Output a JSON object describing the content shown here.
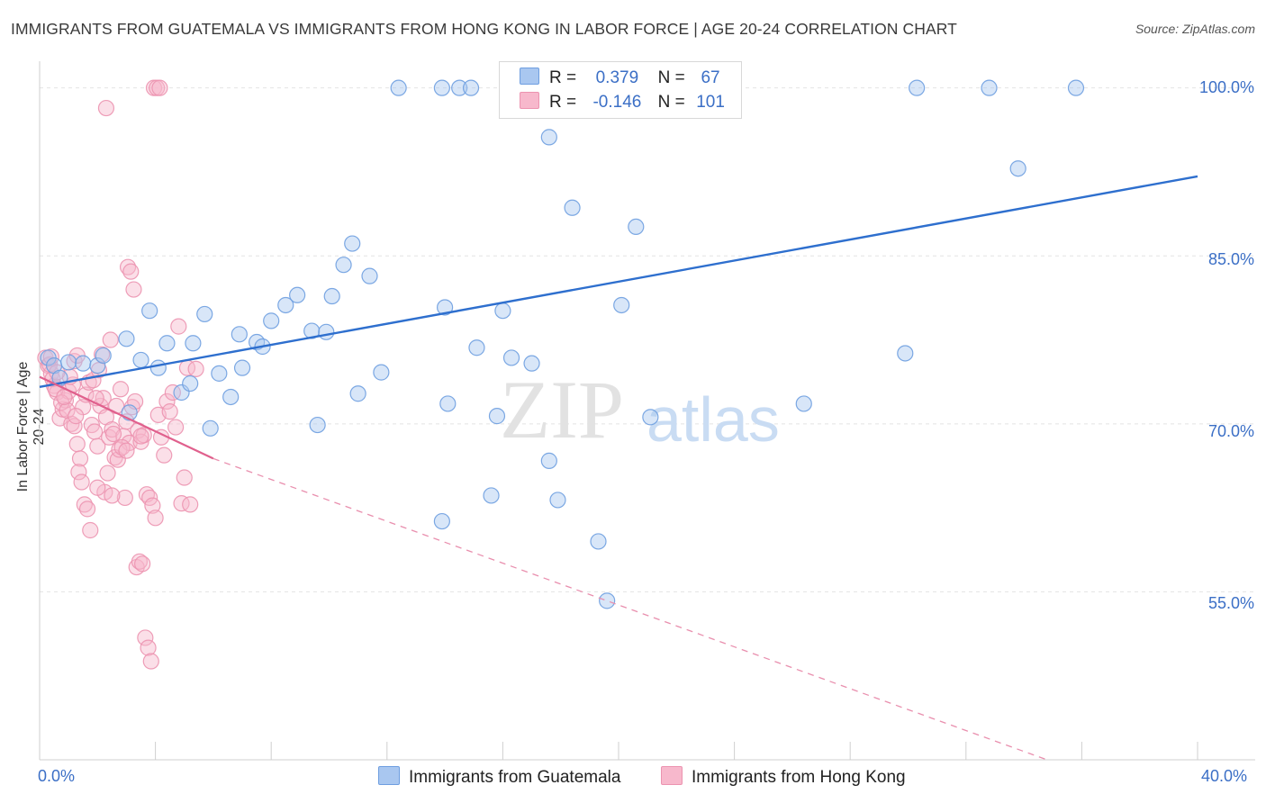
{
  "title": "IMMIGRANTS FROM GUATEMALA VS IMMIGRANTS FROM HONG KONG IN LABOR FORCE | AGE 20-24 CORRELATION CHART",
  "source": "Source: ZipAtlas.com",
  "watermark": {
    "zip": "ZIP",
    "atlas": "atlas"
  },
  "legend": {
    "rows": [
      {
        "r_label": "R =",
        "r_value": "0.379",
        "n_label": "N =",
        "n_value": "67",
        "color": "#a9c7f0"
      },
      {
        "r_label": "R =",
        "r_value": "-0.146",
        "n_label": "N =",
        "n_value": "101",
        "color": "#f7b8cc"
      }
    ]
  },
  "bottom_legend": [
    {
      "label": "Immigrants from Guatemala",
      "color": "#a9c7f0"
    },
    {
      "label": "Immigrants from Hong Kong",
      "color": "#f7b8cc"
    }
  ],
  "chart_data": {
    "type": "scatter",
    "xlabel": "",
    "ylabel": "In Labor Force | Age 20-24",
    "x_tick_labels": {
      "min": "0.0%",
      "max": "40.0%"
    },
    "y_tick_labels": [
      "100.0%",
      "85.0%",
      "70.0%",
      "55.0%"
    ],
    "y_ticks": [
      100,
      85,
      70,
      55
    ],
    "xlim": [
      0,
      40
    ],
    "ylim": [
      40,
      101.5
    ],
    "grid": true,
    "series": [
      {
        "name": "Immigrants from Guatemala",
        "color": "#6e9ee0",
        "fill": "#a9c7f0",
        "trend": {
          "x": [
            0,
            40
          ],
          "y": [
            73.3,
            92.1
          ],
          "dashed": false
        },
        "points": [
          [
            0.3,
            75.9
          ],
          [
            0.5,
            75.2
          ],
          [
            0.7,
            74.1
          ],
          [
            1.0,
            75.5
          ],
          [
            1.5,
            75.4
          ],
          [
            2.0,
            75.2
          ],
          [
            2.2,
            76.1
          ],
          [
            3.0,
            77.6
          ],
          [
            3.1,
            71.0
          ],
          [
            3.5,
            75.7
          ],
          [
            3.8,
            80.1
          ],
          [
            4.1,
            75.0
          ],
          [
            4.4,
            77.2
          ],
          [
            4.9,
            72.8
          ],
          [
            5.2,
            73.6
          ],
          [
            5.3,
            77.2
          ],
          [
            5.7,
            79.8
          ],
          [
            5.9,
            69.6
          ],
          [
            6.2,
            74.5
          ],
          [
            6.6,
            72.4
          ],
          [
            6.9,
            78.0
          ],
          [
            7.0,
            75.0
          ],
          [
            7.5,
            77.3
          ],
          [
            7.7,
            76.9
          ],
          [
            8.0,
            79.2
          ],
          [
            8.5,
            80.6
          ],
          [
            8.9,
            81.5
          ],
          [
            9.4,
            78.3
          ],
          [
            9.6,
            69.9
          ],
          [
            9.9,
            78.2
          ],
          [
            10.1,
            81.4
          ],
          [
            10.5,
            84.2
          ],
          [
            10.8,
            86.1
          ],
          [
            11.0,
            72.7
          ],
          [
            11.4,
            83.2
          ],
          [
            11.8,
            74.6
          ],
          [
            12.4,
            100.0
          ],
          [
            13.9,
            100.0
          ],
          [
            13.9,
            61.3
          ],
          [
            14.0,
            80.4
          ],
          [
            14.1,
            71.8
          ],
          [
            14.5,
            100.0
          ],
          [
            14.9,
            100.0
          ],
          [
            15.1,
            76.8
          ],
          [
            15.6,
            63.6
          ],
          [
            15.8,
            70.7
          ],
          [
            16.0,
            80.1
          ],
          [
            16.3,
            75.9
          ],
          [
            17.0,
            75.4
          ],
          [
            17.6,
            95.6
          ],
          [
            17.6,
            66.7
          ],
          [
            17.9,
            63.2
          ],
          [
            18.4,
            89.3
          ],
          [
            18.8,
            100.0
          ],
          [
            19.3,
            59.5
          ],
          [
            19.6,
            54.2
          ],
          [
            20.1,
            80.6
          ],
          [
            20.6,
            87.6
          ],
          [
            21.1,
            70.6
          ],
          [
            26.4,
            71.8
          ],
          [
            29.9,
            76.3
          ],
          [
            30.3,
            100.0
          ],
          [
            32.8,
            100.0
          ],
          [
            33.8,
            92.8
          ],
          [
            35.8,
            100.0
          ]
        ]
      },
      {
        "name": "Immigrants from Hong Kong",
        "color": "#ec93b0",
        "fill": "#f7b8cc",
        "trend": {
          "x": [
            0,
            6
          ],
          "y": [
            74.2,
            66.9
          ],
          "dashed": false
        },
        "trend_ext": {
          "x": [
            6,
            34.8
          ],
          "y": [
            66.9,
            40.0
          ],
          "dashed": true
        },
        "points": [
          [
            0.2,
            75.9
          ],
          [
            0.3,
            75.2
          ],
          [
            0.4,
            74.5
          ],
          [
            0.5,
            73.4
          ],
          [
            0.6,
            72.8
          ],
          [
            0.7,
            70.5
          ],
          [
            0.8,
            71.3
          ],
          [
            0.9,
            72.1
          ],
          [
            1.0,
            72.9
          ],
          [
            1.1,
            70.0
          ],
          [
            1.2,
            69.8
          ],
          [
            1.3,
            68.2
          ],
          [
            1.4,
            66.9
          ],
          [
            1.5,
            71.5
          ],
          [
            1.6,
            72.6
          ],
          [
            1.7,
            73.7
          ],
          [
            1.8,
            69.9
          ],
          [
            1.9,
            69.3
          ],
          [
            2.0,
            68.0
          ],
          [
            2.1,
            71.6
          ],
          [
            2.2,
            72.3
          ],
          [
            2.3,
            70.6
          ],
          [
            2.4,
            68.8
          ],
          [
            2.5,
            69.5
          ],
          [
            2.6,
            67.0
          ],
          [
            2.7,
            66.8
          ],
          [
            2.8,
            73.1
          ],
          [
            2.9,
            68.9
          ],
          [
            3.0,
            70.2
          ],
          [
            3.1,
            68.3
          ],
          [
            3.2,
            71.5
          ],
          [
            3.3,
            72.0
          ],
          [
            3.4,
            69.4
          ],
          [
            3.5,
            68.4
          ],
          [
            3.6,
            69.0
          ],
          [
            3.7,
            63.7
          ],
          [
            3.8,
            63.4
          ],
          [
            3.9,
            62.7
          ],
          [
            4.0,
            61.6
          ],
          [
            4.1,
            70.8
          ],
          [
            4.2,
            68.8
          ],
          [
            4.3,
            67.2
          ],
          [
            4.4,
            72.0
          ],
          [
            4.5,
            71.1
          ],
          [
            4.6,
            72.8
          ],
          [
            4.7,
            69.7
          ],
          [
            4.8,
            78.7
          ],
          [
            4.9,
            62.9
          ],
          [
            5.0,
            65.2
          ],
          [
            5.1,
            75.0
          ],
          [
            5.2,
            62.8
          ],
          [
            5.4,
            74.9
          ],
          [
            0.35,
            75.3
          ],
          [
            0.45,
            74.0
          ],
          [
            0.55,
            73.1
          ],
          [
            0.75,
            71.9
          ],
          [
            0.95,
            71.2
          ],
          [
            1.15,
            73.5
          ],
          [
            1.35,
            65.7
          ],
          [
            1.45,
            64.8
          ],
          [
            1.55,
            62.8
          ],
          [
            1.65,
            62.4
          ],
          [
            1.75,
            60.5
          ],
          [
            1.85,
            73.9
          ],
          [
            1.95,
            72.3
          ],
          [
            2.05,
            74.8
          ],
          [
            2.15,
            76.2
          ],
          [
            2.25,
            63.9
          ],
          [
            2.35,
            65.6
          ],
          [
            2.45,
            77.5
          ],
          [
            2.55,
            69.1
          ],
          [
            2.65,
            71.6
          ],
          [
            2.75,
            67.7
          ],
          [
            2.85,
            67.9
          ],
          [
            2.95,
            63.4
          ],
          [
            3.05,
            84.0
          ],
          [
            3.15,
            83.6
          ],
          [
            3.25,
            82.0
          ],
          [
            3.35,
            57.2
          ],
          [
            3.45,
            57.7
          ],
          [
            3.55,
            57.5
          ],
          [
            3.65,
            50.9
          ],
          [
            3.75,
            50.0
          ],
          [
            3.85,
            48.8
          ],
          [
            3.95,
            100.0
          ],
          [
            4.05,
            100.0
          ],
          [
            4.15,
            100.0
          ],
          [
            2.3,
            98.2
          ],
          [
            1.2,
            75.6
          ],
          [
            1.3,
            76.1
          ],
          [
            0.85,
            72.4
          ],
          [
            1.05,
            74.2
          ],
          [
            1.25,
            70.7
          ],
          [
            2.0,
            64.3
          ],
          [
            2.5,
            63.6
          ],
          [
            3.0,
            67.6
          ],
          [
            3.5,
            68.9
          ],
          [
            0.6,
            74.6
          ],
          [
            0.4,
            76.0
          ]
        ]
      }
    ]
  }
}
